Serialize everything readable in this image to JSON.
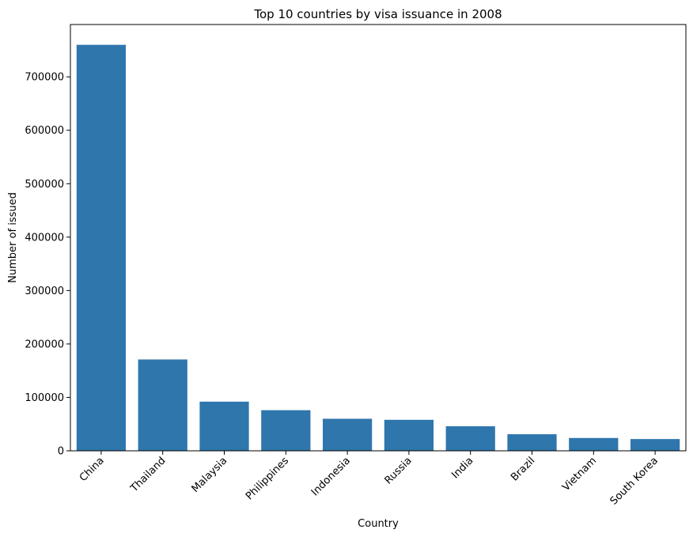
{
  "chart_data": {
    "type": "bar",
    "title": "Top 10 countries by visa issuance in 2008",
    "xlabel": "Country",
    "ylabel": "Number of issued",
    "categories": [
      "China",
      "Thailand",
      "Malaysia",
      "Philippines",
      "Indonesia",
      "Russia",
      "India",
      "Brazil",
      "Vietnam",
      "South Korea"
    ],
    "values": [
      760000,
      171000,
      92000,
      76000,
      60000,
      58000,
      46000,
      31000,
      24000,
      22000
    ],
    "ylim": [
      0,
      798000
    ],
    "yticks": [
      0,
      100000,
      200000,
      300000,
      400000,
      500000,
      600000,
      700000
    ],
    "ytick_labels": [
      "0",
      "100000",
      "200000",
      "300000",
      "400000",
      "500000",
      "600000",
      "700000"
    ],
    "bar_color": "#2f76ad",
    "grid": false,
    "legend": "none"
  }
}
